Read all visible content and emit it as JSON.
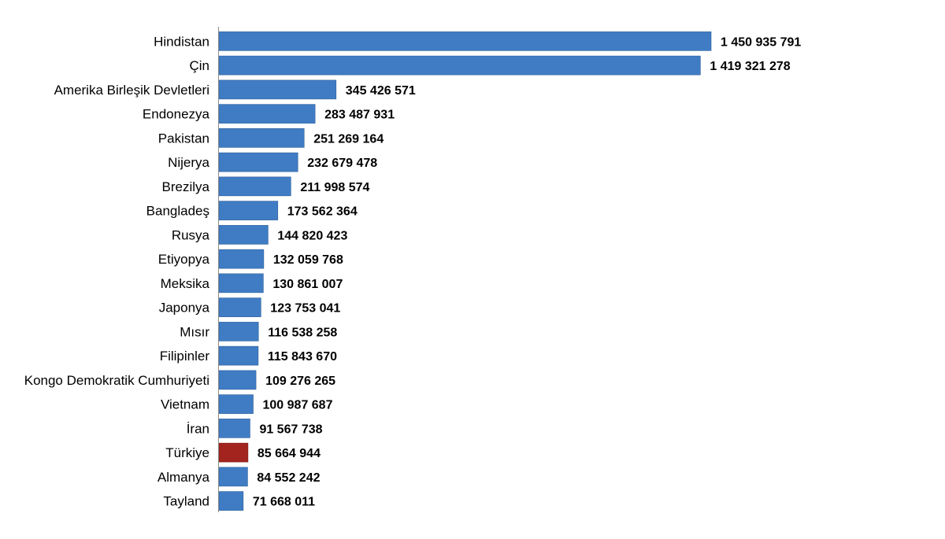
{
  "chart_data": {
    "type": "bar",
    "orientation": "horizontal",
    "categories": [
      "Hindistan",
      "Çin",
      "Amerika Birleşik Devletleri",
      "Endonezya",
      "Pakistan",
      "Nijerya",
      "Brezilya",
      "Bangladeş",
      "Rusya",
      "Etiyopya",
      "Meksika",
      "Japonya",
      "Mısır",
      "Filipinler",
      "Kongo Demokratik Cumhuriyeti",
      "Vietnam",
      "İran",
      "Türkiye",
      "Almanya",
      "Tayland"
    ],
    "values": [
      1450935791,
      1419321278,
      345426571,
      283487931,
      251269164,
      232679478,
      211998574,
      173562364,
      144820423,
      132059768,
      130861007,
      123753041,
      116538258,
      115843670,
      109276265,
      100987687,
      91567738,
      85664944,
      84552242,
      71668011
    ],
    "value_labels": [
      "1 450 935 791",
      "1 419 321 278",
      "345 426 571",
      "283 487 931",
      "251 269 164",
      "232 679 478",
      "211 998 574",
      "173 562 364",
      "144 820 423",
      "132 059 768",
      "130 861 007",
      "123 753 041",
      "116 538 258",
      "115 843 670",
      "109 276 265",
      "100 987 687",
      "91 567 738",
      "85 664 944",
      "84 552 242",
      "71 668 011"
    ],
    "highlight_category": "Türkiye",
    "xlim": [
      0,
      1450935791
    ],
    "grid": false,
    "legend": "none",
    "title": "",
    "xlabel": "",
    "ylabel": ""
  },
  "colors": {
    "bar": "#3f7cc4",
    "bar_border": "#2d5f9a",
    "highlight": "#a3241e",
    "highlight_border": "#7a1a15",
    "axis": "#8c8c8c"
  }
}
